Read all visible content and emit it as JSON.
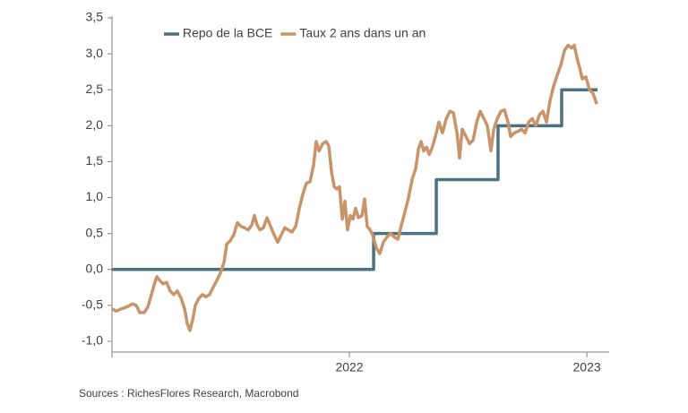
{
  "chart_data": {
    "type": "line",
    "xlim": [
      2021,
      2023.094
    ],
    "xticks": [
      2022,
      2023
    ],
    "ylim": [
      -1.15,
      3.5
    ],
    "yticks": [
      {
        "value": -1.0,
        "label": "-1,0"
      },
      {
        "value": -0.5,
        "label": "-0,5"
      },
      {
        "value": 0,
        "label": "0,0"
      },
      {
        "value": 0.5,
        "label": "0,5"
      },
      {
        "value": 1.0,
        "label": "1,0"
      },
      {
        "value": 1.5,
        "label": "1,5"
      },
      {
        "value": 2.0,
        "label": "2,0"
      },
      {
        "value": 2.5,
        "label": "2,5"
      },
      {
        "value": 3.0,
        "label": "3,0"
      },
      {
        "value": 3.5,
        "label": "3,5"
      }
    ],
    "series": [
      {
        "name": "Repo de la BCE",
        "color": "#4b7282",
        "x": [
          2021,
          2022.102,
          2022.102,
          2022.366,
          2022.366,
          2022.626,
          2022.626,
          2022.894,
          2022.894,
          2023.045
        ],
        "values": [
          0,
          0,
          0.5,
          0.5,
          1.25,
          1.25,
          2,
          2,
          2.5,
          2.5
        ]
      },
      {
        "name": "Taux 2 ans dans un an",
        "color": "#c99469",
        "x": [
          2021.0,
          2021.019,
          2021.038,
          2021.064,
          2021.087,
          2021.102,
          2021.117,
          2021.136,
          2021.151,
          2021.162,
          2021.177,
          2021.189,
          2021.2,
          2021.215,
          2021.23,
          2021.245,
          2021.26,
          2021.275,
          2021.291,
          2021.306,
          2021.317,
          2021.328,
          2021.34,
          2021.351,
          2021.366,
          2021.381,
          2021.396,
          2021.411,
          2021.426,
          2021.442,
          2021.457,
          2021.472,
          2021.483,
          2021.498,
          2021.513,
          2021.528,
          2021.543,
          2021.558,
          2021.574,
          2021.589,
          2021.6,
          2021.611,
          2021.623,
          2021.638,
          2021.653,
          2021.668,
          2021.683,
          2021.698,
          2021.713,
          2021.728,
          2021.743,
          2021.758,
          2021.774,
          2021.789,
          2021.804,
          2021.819,
          2021.834,
          2021.849,
          2021.86,
          2021.872,
          2021.887,
          2021.902,
          2021.913,
          2021.925,
          2021.936,
          2021.947,
          2021.958,
          2021.97,
          2021.981,
          2021.992,
          2022.004,
          2022.015,
          2022.026,
          2022.038,
          2022.053,
          2022.064,
          2022.075,
          2022.087,
          2022.098,
          2022.113,
          2022.128,
          2022.143,
          2022.158,
          2022.174,
          2022.189,
          2022.204,
          2022.219,
          2022.234,
          2022.249,
          2022.264,
          2022.279,
          2022.291,
          2022.302,
          2022.313,
          2022.325,
          2022.336,
          2022.347,
          2022.362,
          2022.377,
          2022.392,
          2022.408,
          2022.423,
          2022.438,
          2022.453,
          2022.464,
          2022.475,
          2022.491,
          2022.506,
          2022.521,
          2022.536,
          2022.551,
          2022.566,
          2022.581,
          2022.596,
          2022.608,
          2022.623,
          2022.638,
          2022.653,
          2022.668,
          2022.679,
          2022.694,
          2022.709,
          2022.725,
          2022.74,
          2022.755,
          2022.77,
          2022.785,
          2022.8,
          2022.815,
          2022.83,
          2022.845,
          2022.86,
          2022.875,
          2022.891,
          2022.906,
          2022.921,
          2022.936,
          2022.947,
          2022.958,
          2022.97,
          2022.981,
          2022.996,
          2023.011,
          2023.026,
          2023.042
        ],
        "values": [
          -0.55,
          -0.58,
          -0.55,
          -0.52,
          -0.48,
          -0.5,
          -0.6,
          -0.6,
          -0.52,
          -0.4,
          -0.22,
          -0.1,
          -0.15,
          -0.2,
          -0.18,
          -0.3,
          -0.35,
          -0.3,
          -0.4,
          -0.55,
          -0.75,
          -0.85,
          -0.7,
          -0.5,
          -0.4,
          -0.35,
          -0.38,
          -0.35,
          -0.25,
          -0.15,
          -0.05,
          0.1,
          0.35,
          0.4,
          0.48,
          0.65,
          0.6,
          0.58,
          0.55,
          0.62,
          0.75,
          0.62,
          0.55,
          0.58,
          0.72,
          0.6,
          0.48,
          0.38,
          0.48,
          0.58,
          0.55,
          0.52,
          0.6,
          0.85,
          1.05,
          1.2,
          1.22,
          1.45,
          1.78,
          1.65,
          1.75,
          1.78,
          1.72,
          1.35,
          1.15,
          1.12,
          1.15,
          0.7,
          0.95,
          0.55,
          0.75,
          0.7,
          0.85,
          0.72,
          0.75,
          0.98,
          0.6,
          0.55,
          0.48,
          0.3,
          0.22,
          0.38,
          0.45,
          0.5,
          0.45,
          0.42,
          0.62,
          0.8,
          1.0,
          1.25,
          1.4,
          1.68,
          1.78,
          1.65,
          1.7,
          1.6,
          1.68,
          1.85,
          2.05,
          1.9,
          2.1,
          2.2,
          2.18,
          1.9,
          1.55,
          1.95,
          1.85,
          1.75,
          1.8,
          2.05,
          2.2,
          2.1,
          2.0,
          1.65,
          1.95,
          2.1,
          2.2,
          2.22,
          2.05,
          1.85,
          1.9,
          1.92,
          1.95,
          1.9,
          2.05,
          2.1,
          2.0,
          2.15,
          2.2,
          2.05,
          2.35,
          2.55,
          2.7,
          2.85,
          3.05,
          3.12,
          3.08,
          3.12,
          2.95,
          2.8,
          2.65,
          2.68,
          2.5,
          2.45,
          2.3
        ]
      }
    ],
    "source": "Sources : RichesFlores Research, Macrobond"
  }
}
